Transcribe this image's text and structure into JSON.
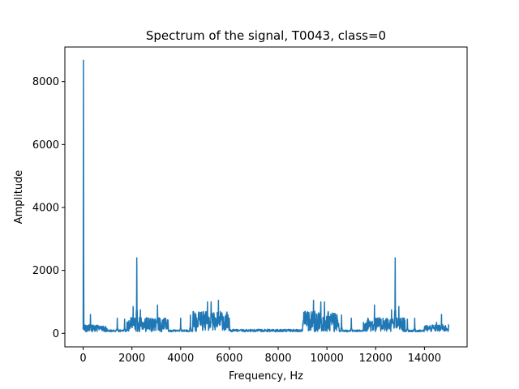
{
  "chart_data": {
    "type": "line",
    "title": "Spectrum of the signal, T0043, class=0",
    "xlabel": "Frequency, Hz",
    "ylabel": "Amplitude",
    "xlim": [
      -750,
      15750
    ],
    "ylim": [
      -430,
      9100
    ],
    "x_ticks": [
      0,
      2000,
      4000,
      6000,
      8000,
      10000,
      12000,
      14000
    ],
    "y_ticks": [
      0,
      2000,
      4000,
      6000,
      8000
    ],
    "grid": false,
    "legend": "none",
    "series": [
      {
        "color": "#1f77b4",
        "baseline": 50,
        "x_max": 15000,
        "peaks": [
          {
            "x": 0,
            "y": 8680
          },
          {
            "x": 300,
            "y": 600
          },
          {
            "x": 1400,
            "y": 480
          },
          {
            "x": 1700,
            "y": 450
          },
          {
            "x": 2050,
            "y": 850
          },
          {
            "x": 2200,
            "y": 2400
          },
          {
            "x": 2350,
            "y": 750
          },
          {
            "x": 2700,
            "y": 480
          },
          {
            "x": 3050,
            "y": 900
          },
          {
            "x": 3300,
            "y": 450
          },
          {
            "x": 4000,
            "y": 480
          },
          {
            "x": 4400,
            "y": 580
          },
          {
            "x": 5100,
            "y": 1000
          },
          {
            "x": 5250,
            "y": 1000
          },
          {
            "x": 5550,
            "y": 1050
          },
          {
            "x": 6000,
            "y": 300
          },
          {
            "x": 9450,
            "y": 1050
          },
          {
            "x": 9750,
            "y": 1000
          },
          {
            "x": 9900,
            "y": 1000
          },
          {
            "x": 10600,
            "y": 580
          },
          {
            "x": 11000,
            "y": 480
          },
          {
            "x": 11700,
            "y": 450
          },
          {
            "x": 11950,
            "y": 900
          },
          {
            "x": 12300,
            "y": 480
          },
          {
            "x": 12650,
            "y": 750
          },
          {
            "x": 12800,
            "y": 2400
          },
          {
            "x": 12950,
            "y": 850
          },
          {
            "x": 13300,
            "y": 450
          },
          {
            "x": 13600,
            "y": 480
          },
          {
            "x": 14500,
            "y": 350
          },
          {
            "x": 14700,
            "y": 600
          }
        ],
        "bands": [
          {
            "from": 0,
            "to": 1000,
            "level": 220
          },
          {
            "from": 1800,
            "to": 3500,
            "level": 450
          },
          {
            "from": 4500,
            "to": 6000,
            "level": 650
          },
          {
            "from": 6000,
            "to": 9000,
            "level": 80
          },
          {
            "from": 9000,
            "to": 10500,
            "level": 650
          },
          {
            "from": 11500,
            "to": 13200,
            "level": 450
          },
          {
            "from": 14000,
            "to": 15000,
            "level": 220
          }
        ]
      }
    ]
  }
}
